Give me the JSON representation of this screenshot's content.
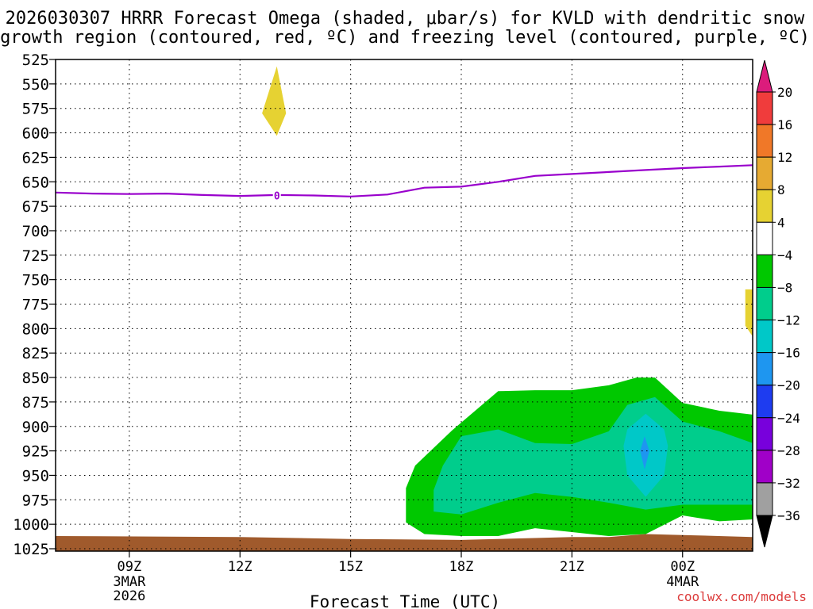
{
  "chart_data": {
    "type": "heatmap",
    "title_line1": "2026030307 HRRR Forecast Omega (shaded, μbar/s) for KVLD with dendritic snow",
    "title_line2": "growth region (contoured, red, ºC) and freezing level (contoured, purple, ºC)",
    "xlabel": "Forecast Time (UTC)",
    "watermark": "coolwx.com/models",
    "xlim": [
      7,
      25.9
    ],
    "ylim": [
      525,
      1025
    ],
    "x_ticks": [
      {
        "value": 9,
        "label": "09Z",
        "sub1": "3MAR",
        "sub2": "2026"
      },
      {
        "value": 12,
        "label": "12Z",
        "sub1": "",
        "sub2": ""
      },
      {
        "value": 15,
        "label": "15Z",
        "sub1": "",
        "sub2": ""
      },
      {
        "value": 18,
        "label": "18Z",
        "sub1": "",
        "sub2": ""
      },
      {
        "value": 21,
        "label": "21Z",
        "sub1": "",
        "sub2": ""
      },
      {
        "value": 24,
        "label": "00Z",
        "sub1": "4MAR",
        "sub2": ""
      }
    ],
    "y_ticks": [
      "525",
      "550",
      "575",
      "600",
      "625",
      "650",
      "675",
      "700",
      "725",
      "750",
      "775",
      "800",
      "825",
      "850",
      "875",
      "900",
      "925",
      "950",
      "975",
      "1000",
      "1025"
    ],
    "colorbar": {
      "labels": [
        "20",
        "16",
        "12",
        "8",
        "4",
        "−4",
        "−8",
        "−12",
        "−16",
        "−20",
        "−24",
        "−28",
        "−32",
        "−36"
      ],
      "colors": [
        "#dc1c7c",
        "#f03c3c",
        "#f07828",
        "#e6aa32",
        "#e6d232",
        "#ffffff",
        "#00c800",
        "#00cd8c",
        "#00c8c8",
        "#1e96f0",
        "#1e3cf0",
        "#7800dc",
        "#a000c8",
        "#a0a0a0",
        "#000000"
      ]
    },
    "series": [
      {
        "name": "freezing level",
        "label": "0",
        "label_at": [
          13,
          664
        ],
        "color": "#9900cc",
        "points": [
          [
            7,
            661
          ],
          [
            8,
            662
          ],
          [
            9,
            662.5
          ],
          [
            10,
            662
          ],
          [
            11,
            663.5
          ],
          [
            12,
            664.5
          ],
          [
            13,
            663.5
          ],
          [
            14,
            664
          ],
          [
            15,
            665
          ],
          [
            16,
            663
          ],
          [
            17,
            656
          ],
          [
            18,
            655
          ],
          [
            19,
            650
          ],
          [
            20,
            644
          ],
          [
            21,
            642
          ],
          [
            22,
            640
          ],
          [
            23,
            638
          ],
          [
            24,
            636
          ],
          [
            25,
            634.5
          ],
          [
            25.9,
            633
          ]
        ]
      }
    ],
    "regions": [
      {
        "name": "omega-positive-4-8",
        "color": "#e6d232",
        "points": [
          [
            13,
            532
          ],
          [
            13.25,
            580
          ],
          [
            13,
            603
          ],
          [
            12.6,
            580
          ]
        ]
      },
      {
        "name": "omega-positive-edge-4-8",
        "color": "#e6d232",
        "points": [
          [
            25.9,
            760
          ],
          [
            25.9,
            808
          ],
          [
            25.7,
            797
          ],
          [
            25.7,
            760
          ]
        ]
      },
      {
        "name": "omega-neg-4-8",
        "color": "#00c800",
        "points": [
          [
            16.5,
            963
          ],
          [
            16.75,
            940
          ],
          [
            17.75,
            904
          ],
          [
            18.5,
            880
          ],
          [
            19,
            864
          ],
          [
            20,
            863
          ],
          [
            21,
            863
          ],
          [
            22,
            858
          ],
          [
            22.75,
            850
          ],
          [
            23.25,
            850
          ],
          [
            24,
            876
          ],
          [
            25,
            884
          ],
          [
            25.9,
            888
          ],
          [
            25.9,
            995
          ],
          [
            25,
            997
          ],
          [
            24,
            991
          ],
          [
            23,
            1010
          ],
          [
            22,
            1012
          ],
          [
            21,
            1008
          ],
          [
            20,
            1004
          ],
          [
            19,
            1012
          ],
          [
            18,
            1012
          ],
          [
            17,
            1010
          ],
          [
            16.5,
            998
          ]
        ]
      },
      {
        "name": "omega-neg-8-12",
        "color": "#00cd8c",
        "points": [
          [
            17.25,
            965
          ],
          [
            17.5,
            940
          ],
          [
            18,
            910
          ],
          [
            19,
            903
          ],
          [
            20,
            917
          ],
          [
            21,
            918
          ],
          [
            22,
            905
          ],
          [
            22.5,
            878
          ],
          [
            23.25,
            870
          ],
          [
            24,
            895
          ],
          [
            25,
            905
          ],
          [
            25.9,
            917
          ],
          [
            25.9,
            980
          ],
          [
            25,
            980
          ],
          [
            24,
            980
          ],
          [
            23,
            985
          ],
          [
            22,
            978
          ],
          [
            21,
            972
          ],
          [
            20,
            968
          ],
          [
            19,
            978
          ],
          [
            18,
            990
          ],
          [
            17.25,
            987
          ]
        ]
      },
      {
        "name": "omega-neg-12-16",
        "color": "#00c8c8",
        "points": [
          [
            23,
            887
          ],
          [
            23.5,
            903
          ],
          [
            23.6,
            920
          ],
          [
            23.5,
            950
          ],
          [
            23,
            972
          ],
          [
            22.5,
            950
          ],
          [
            22.4,
            920
          ],
          [
            22.5,
            903
          ]
        ]
      },
      {
        "name": "omega-neg-16-20",
        "color": "#1e96f0",
        "points": [
          [
            22.97,
            910
          ],
          [
            23.1,
            925
          ],
          [
            22.97,
            944
          ],
          [
            22.85,
            925
          ]
        ]
      }
    ],
    "terrain": {
      "color": "#a05a2c",
      "points": [
        [
          7,
          1012
        ],
        [
          12,
          1013
        ],
        [
          15,
          1015
        ],
        [
          18,
          1016
        ],
        [
          21,
          1013
        ],
        [
          22,
          1013
        ],
        [
          23,
          1010
        ],
        [
          24,
          1011
        ],
        [
          25.9,
          1013
        ]
      ]
    }
  }
}
